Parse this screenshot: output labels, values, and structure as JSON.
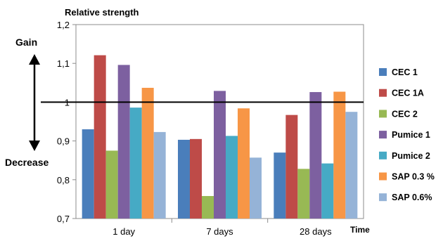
{
  "chart_data": {
    "type": "bar",
    "ylabel": "Relative strength",
    "xlabel": "Time",
    "ylim": [
      0.7,
      1.2
    ],
    "yticks": [
      "0,7",
      "0,8",
      "0,9",
      "1",
      "1,1",
      "1,2"
    ],
    "grid": false,
    "legend_position": "right",
    "categories": [
      "1 day",
      "7 days",
      "28 days"
    ],
    "series": [
      {
        "name": "CEC 1",
        "color": "#4a7ebb",
        "values": [
          0.93,
          0.903,
          0.87
        ]
      },
      {
        "name": "CEC 1A",
        "color": "#be4b48",
        "values": [
          1.121,
          0.905,
          0.967
        ]
      },
      {
        "name": "CEC 2",
        "color": "#98b954",
        "values": [
          0.875,
          0.758,
          0.828
        ]
      },
      {
        "name": "Pumice 1",
        "color": "#7d60a0",
        "values": [
          1.096,
          1.029,
          1.026
        ]
      },
      {
        "name": "Pumice 2",
        "color": "#46aac5",
        "values": [
          0.986,
          0.913,
          0.842
        ]
      },
      {
        "name": "SAP 0.3 %",
        "color": "#f79646",
        "values": [
          1.037,
          0.984,
          1.027
        ]
      },
      {
        "name": "SAP 0.6%",
        "color": "#95b3d7",
        "values": [
          0.923,
          0.857,
          0.975
        ]
      }
    ],
    "reference_line": 1,
    "annotations": {
      "gain": "Gain",
      "decrease": "Decrease"
    }
  }
}
